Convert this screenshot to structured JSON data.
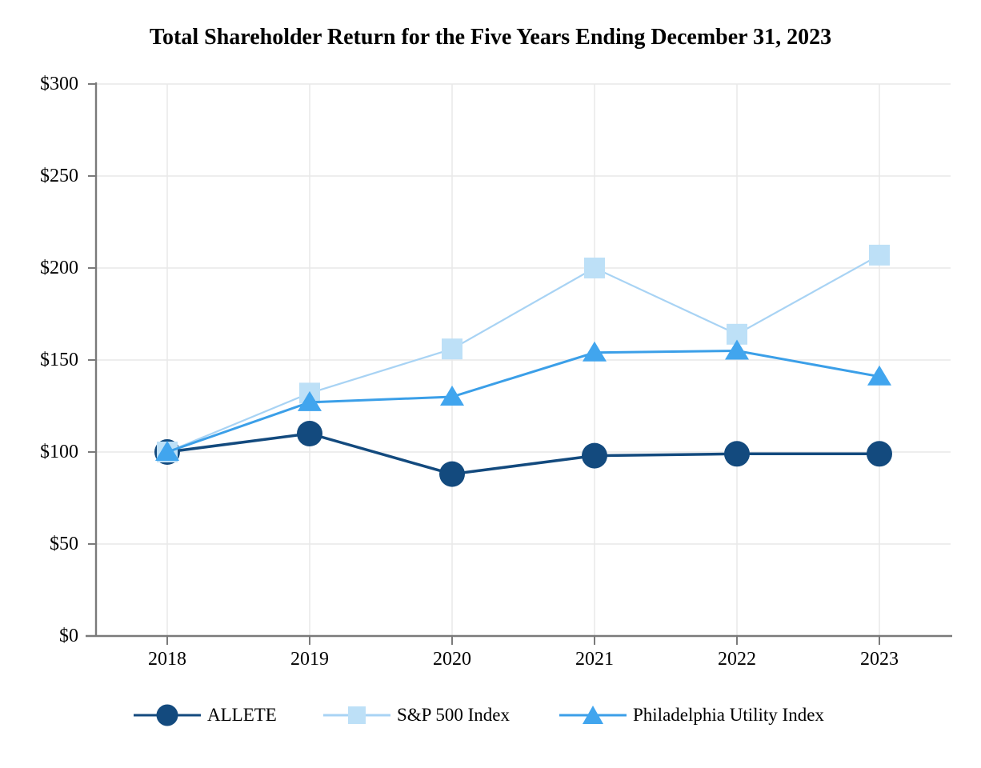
{
  "chart_data": {
    "type": "line",
    "title": "Total Shareholder Return for the Five Years Ending December 31, 2023",
    "categories": [
      "2018",
      "2019",
      "2020",
      "2021",
      "2022",
      "2023"
    ],
    "xlabel": "",
    "ylabel": "",
    "ylim": [
      0,
      300
    ],
    "y_ticks": [
      {
        "value": 300,
        "label": "$300"
      },
      {
        "value": 250,
        "label": "$250"
      },
      {
        "value": 200,
        "label": "$200"
      },
      {
        "value": 150,
        "label": "$150"
      },
      {
        "value": 100,
        "label": "$100"
      },
      {
        "value": 50,
        "label": "$50"
      },
      {
        "value": 0,
        "label": "$0"
      }
    ],
    "grid": true,
    "legend_position": "bottom",
    "series": [
      {
        "name": "ALLETE",
        "marker": "circle",
        "color": "#134a7e",
        "line_color": "#134a7e",
        "values": [
          100,
          110,
          88,
          98,
          99,
          99
        ]
      },
      {
        "name": "S&P 500 Index",
        "marker": "square",
        "color": "#bde0f7",
        "line_color": "#a8d3f4",
        "values": [
          100,
          132,
          156,
          200,
          164,
          207
        ]
      },
      {
        "name": "Philadelphia Utility Index",
        "marker": "triangle",
        "color": "#41a5ee",
        "line_color": "#3b9fe8",
        "values": [
          100,
          127,
          130,
          154,
          155,
          141
        ]
      }
    ],
    "colors": {
      "axis": "#7a7a7a",
      "gridline": "#e9e9e9",
      "text": "#000000",
      "background": "#ffffff"
    }
  }
}
